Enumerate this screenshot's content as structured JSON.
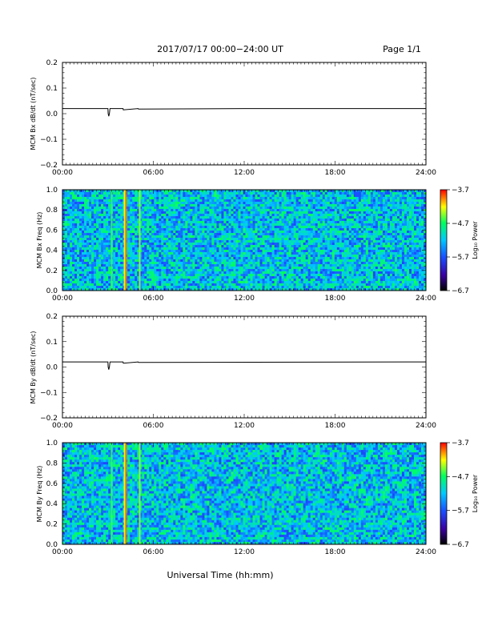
{
  "header": {
    "title": "2017/07/17  00:00−24:00 UT",
    "page": "Page 1/1"
  },
  "footer": {
    "xlabel": "Universal Time (hh:mm)"
  },
  "colors": {
    "colorbar_stops": [
      "#000000",
      "#3a00a0",
      "#1a4fff",
      "#00c8ff",
      "#00ff60",
      "#ffff00",
      "#ff0000"
    ],
    "background_band": "#2f6fe0",
    "trace": "#000000"
  },
  "chart_data": [
    {
      "type": "line",
      "panel_id": "bx-dbdt",
      "ylabel": "MCM Bx dB/dt (nT/sec)",
      "xlim": [
        0,
        24
      ],
      "ylim": [
        -0.2,
        0.2
      ],
      "x_ticks": [
        "00:00",
        "06:00",
        "12:00",
        "18:00",
        "24:00"
      ],
      "y_ticks": [
        "0.2",
        "0.1",
        "0.0",
        "−0.1",
        "−0.2"
      ],
      "series": [
        {
          "x": [
            0,
            3.0,
            3.02,
            3.06,
            3.1,
            3.14,
            3.2,
            4.0,
            4.02,
            5.0,
            5.02,
            12.0,
            24
          ],
          "values": [
            0.02,
            0.02,
            0.0,
            -0.01,
            0.0,
            0.02,
            0.02,
            0.02,
            0.015,
            0.02,
            0.018,
            0.02,
            0.02
          ]
        }
      ]
    },
    {
      "type": "heatmap",
      "panel_id": "bx-spec",
      "ylabel": "MCM Bx Freq (Hz)",
      "xlim": [
        0,
        24
      ],
      "ylim": [
        0.0,
        1.0
      ],
      "x_ticks": [
        "00:00",
        "06:00",
        "12:00",
        "18:00",
        "24:00"
      ],
      "y_ticks": [
        "1.0",
        "0.8",
        "0.6",
        "0.4",
        "0.2",
        "0.0"
      ],
      "colorbar_label": "Log₁₀ Power",
      "colorbar_ticks": [
        "−3.7",
        "−4.7",
        "−5.7",
        "−6.7"
      ],
      "colorbar_range": [
        -6.7,
        -3.7
      ],
      "typical_power": -5.2,
      "events": [
        {
          "time": 3.25,
          "power": -4.6
        },
        {
          "time": 4.1,
          "power": -4.2
        },
        {
          "time": 4.2,
          "power": -3.9
        },
        {
          "time": 5.1,
          "power": -4.4
        }
      ]
    },
    {
      "type": "line",
      "panel_id": "by-dbdt",
      "ylabel": "MCM By dB/dt (nT/sec)",
      "xlim": [
        0,
        24
      ],
      "ylim": [
        -0.2,
        0.2
      ],
      "x_ticks": [
        "00:00",
        "06:00",
        "12:00",
        "18:00",
        "24:00"
      ],
      "y_ticks": [
        "0.2",
        "0.1",
        "0.0",
        "−0.1",
        "−0.2"
      ],
      "series": [
        {
          "x": [
            0,
            3.0,
            3.02,
            3.06,
            3.1,
            3.14,
            3.2,
            4.0,
            4.02,
            5.0,
            5.02,
            24
          ],
          "values": [
            0.02,
            0.02,
            0.0,
            -0.01,
            0.0,
            0.02,
            0.02,
            0.02,
            0.015,
            0.02,
            0.018,
            0.02
          ]
        }
      ]
    },
    {
      "type": "heatmap",
      "panel_id": "by-spec",
      "ylabel": "MCM By Freq (Hz)",
      "xlim": [
        0,
        24
      ],
      "ylim": [
        0.0,
        1.0
      ],
      "x_ticks": [
        "00:00",
        "06:00",
        "12:00",
        "18:00",
        "24:00"
      ],
      "y_ticks": [
        "1.0",
        "0.8",
        "0.6",
        "0.4",
        "0.2",
        "0.0"
      ],
      "colorbar_label": "Log₁₀ Power",
      "colorbar_ticks": [
        "−3.7",
        "−4.7",
        "−5.7",
        "−6.7"
      ],
      "colorbar_range": [
        -6.7,
        -3.7
      ],
      "typical_power": -5.2,
      "events": [
        {
          "time": 3.25,
          "power": -4.6
        },
        {
          "time": 4.1,
          "power": -4.2
        },
        {
          "time": 4.2,
          "power": -3.9
        },
        {
          "time": 5.1,
          "power": -4.4
        }
      ]
    }
  ]
}
